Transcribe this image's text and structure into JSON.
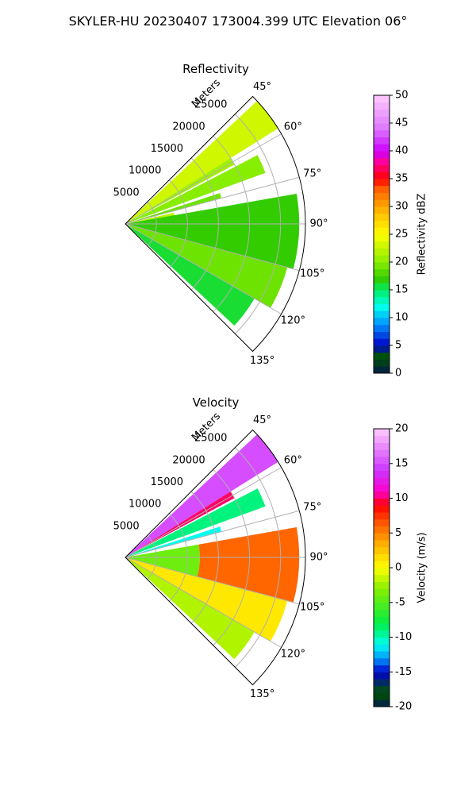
{
  "figure": {
    "suptitle": "SKYLER-HU  20230407  173004.399 UTC Elevation 06°"
  },
  "chart_data": [
    {
      "type": "heatmap",
      "subtype": "polar-sector",
      "title": "Reflectivity",
      "radial_axis_label": "Meters",
      "radial_ticks": [
        5000,
        10000,
        15000,
        20000,
        25000
      ],
      "radial_tick_labels": [
        "5000",
        "10000",
        "15000",
        "20000",
        "25000"
      ],
      "rmax": 29000,
      "azimuth_range": [
        45,
        135
      ],
      "azimuth_ticks": [
        45,
        60,
        75,
        90,
        105,
        120,
        135
      ],
      "azimuth_tick_labels": [
        "45°",
        "60°",
        "75°",
        "90°",
        "105°",
        "120°",
        "135°"
      ],
      "grid": true,
      "colorbar": {
        "label": "Reflectivity dBZ",
        "range": [
          0,
          50
        ],
        "ticks": [
          0,
          5,
          10,
          15,
          20,
          25,
          30,
          35,
          40,
          45,
          50
        ]
      },
      "colors": {
        "stops": [
          "#001a4d",
          "#005500",
          "#0000cc",
          "#0099ff",
          "#00ffee",
          "#00ee66",
          "#33cc00",
          "#88ee00",
          "#ffff00",
          "#ffbb00",
          "#ff6600",
          "#ff0000",
          "#ff0099",
          "#cc00ff",
          "#dd77ff",
          "#ffccff"
        ],
        "stop_values": [
          0,
          3,
          5,
          9,
          12,
          15,
          17,
          20,
          25,
          29,
          33,
          35,
          38,
          40,
          44,
          50
        ]
      },
      "sectors": [
        {
          "az": [
            47,
            58
          ],
          "r": [
            0,
            29000
          ],
          "value": 23
        },
        {
          "az": [
            58,
            61.5
          ],
          "r": [
            0,
            20000
          ],
          "value": 21
        },
        {
          "az": [
            62.5,
            70
          ],
          "r": [
            0,
            24000
          ],
          "value": 20
        },
        {
          "az": [
            72,
            75
          ],
          "r": [
            0,
            16000
          ],
          "value": 19
        },
        {
          "az": [
            77,
            82
          ],
          "r": [
            0,
            8000
          ],
          "value": 22
        },
        {
          "az": [
            80,
            105
          ],
          "r": [
            0,
            28000
          ],
          "value": 17
        },
        {
          "az": [
            105,
            120
          ],
          "r": [
            0,
            27000
          ],
          "value": 19
        },
        {
          "az": [
            120,
            133
          ],
          "r": [
            0,
            24000
          ],
          "value": 16
        }
      ]
    },
    {
      "type": "heatmap",
      "subtype": "polar-sector",
      "title": "Velocity",
      "radial_axis_label": "Meters",
      "radial_ticks": [
        5000,
        10000,
        15000,
        20000,
        25000
      ],
      "radial_tick_labels": [
        "5000",
        "10000",
        "15000",
        "20000",
        "25000"
      ],
      "rmax": 29000,
      "azimuth_range": [
        45,
        135
      ],
      "azimuth_ticks": [
        45,
        60,
        75,
        90,
        105,
        120,
        135
      ],
      "azimuth_tick_labels": [
        "45°",
        "60°",
        "75°",
        "90°",
        "105°",
        "120°",
        "135°"
      ],
      "grid": true,
      "colorbar": {
        "label": "Velocity (m/s)",
        "range": [
          -20,
          20
        ],
        "ticks": [
          -20,
          -15,
          -10,
          -5,
          0,
          5,
          10,
          15,
          20
        ]
      },
      "colors": {
        "stops": [
          "#001a4d",
          "#005500",
          "#0000cc",
          "#0099ff",
          "#00ffee",
          "#00ee44",
          "#88ee00",
          "#ffff00",
          "#ffbb00",
          "#ff6600",
          "#ff0000",
          "#ff00cc",
          "#cc33ff",
          "#ffccff"
        ],
        "stop_values": [
          -20,
          -18,
          -15,
          -13,
          -11,
          -8,
          -3,
          0,
          3,
          6,
          9,
          11,
          14,
          20
        ]
      },
      "sectors": [
        {
          "az": [
            47,
            58
          ],
          "r": [
            0,
            29000
          ],
          "value": 15
        },
        {
          "az": [
            58,
            61.5
          ],
          "r": [
            0,
            20000
          ],
          "value": 10
        },
        {
          "az": [
            62.5,
            70
          ],
          "r": [
            0,
            24000
          ],
          "value": -9
        },
        {
          "az": [
            72,
            75
          ],
          "r": [
            0,
            16000
          ],
          "value": -11
        },
        {
          "az": [
            80,
            105
          ],
          "r": [
            0,
            12000
          ],
          "value": -4
        },
        {
          "az": [
            80,
            105
          ],
          "r": [
            12000,
            28000
          ],
          "value": 6
        },
        {
          "az": [
            105,
            120
          ],
          "r": [
            0,
            27000
          ],
          "value": 1
        },
        {
          "az": [
            120,
            133
          ],
          "r": [
            0,
            24000
          ],
          "value": -2
        }
      ]
    }
  ]
}
